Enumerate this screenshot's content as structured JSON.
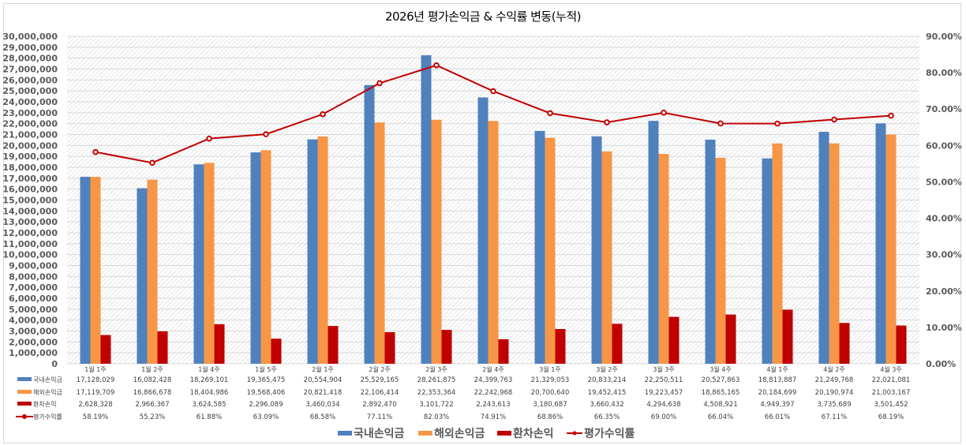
{
  "chart_data": {
    "type": "bar",
    "title": "2026년 평가손익금 & 수익률 변동(누적)",
    "categories": [
      "1월 1주",
      "1월 2주",
      "1월 4주",
      "1월 5주",
      "2월 1주",
      "2월 2주",
      "2월 3주",
      "2월 4주",
      "3월 1주",
      "3월 2주",
      "3월 3주",
      "3월 4주",
      "4월 1주",
      "4월 2주",
      "4월 3주"
    ],
    "series": [
      {
        "name": "국내손익금",
        "kind": "bar",
        "axis": "left",
        "color": "#4F81BD",
        "values": [
          17128029,
          16082428,
          18269101,
          19365475,
          20554904,
          25529165,
          28261875,
          24399763,
          21329053,
          20833214,
          22250511,
          20527863,
          18813887,
          21249768,
          22021081
        ],
        "labels": [
          "17,128,029",
          "16,082,428",
          "18,269,101",
          "19,365,475",
          "20,554,904",
          "25,529,165",
          "28,261,875",
          "24,399,763",
          "21,329,053",
          "20,833,214",
          "22,250,511",
          "20,527,863",
          "18,813,887",
          "21,249,768",
          "22,021,081"
        ]
      },
      {
        "name": "해외손익금",
        "kind": "bar",
        "axis": "left",
        "color": "#F79646",
        "values": [
          17119709,
          16866678,
          18404986,
          19568406,
          20821418,
          22106414,
          22353364,
          22242968,
          20700640,
          19452415,
          19223457,
          18865165,
          20184699,
          20190974,
          21003167
        ],
        "labels": [
          "17,119,709",
          "16,866,678",
          "18,404,986",
          "19,568,406",
          "20,821,418",
          "22,106,414",
          "22,353,364",
          "22,242,968",
          "20,700,640",
          "19,452,415",
          "19,223,457",
          "18,865,165",
          "20,184,699",
          "20,190,974",
          "21,003,167"
        ]
      },
      {
        "name": "환차손익",
        "kind": "bar",
        "axis": "left",
        "color": "#C00000",
        "values": [
          2628328,
          2966367,
          3624585,
          2296089,
          3460034,
          2892470,
          3101722,
          2243613,
          3180687,
          3660432,
          4294638,
          4508921,
          4949397,
          3735689,
          3501452
        ],
        "labels": [
          "2,628,328",
          "2,966,367",
          "3,624,585",
          "2,296,089",
          "3,460,034",
          "2,892,470",
          "3,101,722",
          "2,243,613",
          "3,180,687",
          "3,660,432",
          "4,294,638",
          "4,508,921",
          "4,949,397",
          "3,735,689",
          "3,501,452"
        ]
      },
      {
        "name": "평가수익률",
        "kind": "line",
        "axis": "right",
        "color": "#C00000",
        "values": [
          58.19,
          55.23,
          61.88,
          63.09,
          68.58,
          77.11,
          82.03,
          74.91,
          68.86,
          66.35,
          69.0,
          66.04,
          66.01,
          67.11,
          68.19
        ],
        "labels": [
          "58.19%",
          "55.23%",
          "61.88%",
          "63.09%",
          "68.58%",
          "77.11%",
          "82.03%",
          "74.91%",
          "68.86%",
          "66.35%",
          "69.00%",
          "66.04%",
          "66.01%",
          "67.11%",
          "68.19%"
        ]
      }
    ],
    "left_axis": {
      "ylim": [
        0,
        30000000
      ],
      "ticks": [
        "0",
        "1,000,000",
        "2,000,000",
        "3,000,000",
        "4,000,000",
        "5,000,000",
        "6,000,000",
        "7,000,000",
        "8,000,000",
        "9,000,000",
        "10,000,000",
        "11,000,000",
        "12,000,000",
        "13,000,000",
        "14,000,000",
        "15,000,000",
        "16,000,000",
        "17,000,000",
        "18,000,000",
        "19,000,000",
        "20,000,000",
        "21,000,000",
        "22,000,000",
        "23,000,000",
        "24,000,000",
        "25,000,000",
        "26,000,000",
        "27,000,000",
        "28,000,000",
        "29,000,000",
        "30,000,000"
      ]
    },
    "right_axis": {
      "ylim": [
        0,
        90
      ],
      "ticks": [
        "0.00%",
        "10.00%",
        "20.00%",
        "30.00%",
        "40.00%",
        "50.00%",
        "60.00%",
        "70.00%",
        "80.00%",
        "90.00%"
      ]
    },
    "grid": true,
    "data_table": true,
    "legend": {
      "position": "bottom",
      "entries": [
        "국내손익금",
        "해외손익금",
        "환차손익",
        "평가수익률"
      ]
    },
    "xlabel": "",
    "ylabel": ""
  }
}
